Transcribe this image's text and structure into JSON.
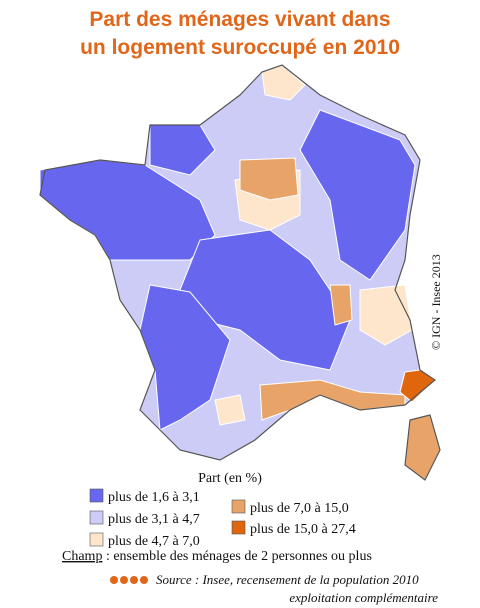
{
  "title": [
    "Part des ménages vivant dans",
    "un logement suroccupé en 2010"
  ],
  "credit": "© IGN - Insee 2013",
  "legend": {
    "title": "Part (en %)",
    "items": [
      {
        "label": "plus de 1,6 à 3,1",
        "color": "#6666ee"
      },
      {
        "label": "plus de 3,1 à 4,7",
        "color": "#ccccf6"
      },
      {
        "label": "plus de 4,7 à 7,0",
        "color": "#fde6cc"
      },
      {
        "label": "plus de 7,0 à 15,0",
        "color": "#e8a468"
      },
      {
        "label": "plus de 15,0 à 27,4",
        "color": "#e0660e"
      }
    ]
  },
  "note": {
    "label": "Champ",
    "text": " : ensemble des ménages de 2 personnes ou plus"
  },
  "source": {
    "label": "Source :",
    "text": " Insee, recensement de la population 2010",
    "line2": "exploitation complémentaire"
  }
}
